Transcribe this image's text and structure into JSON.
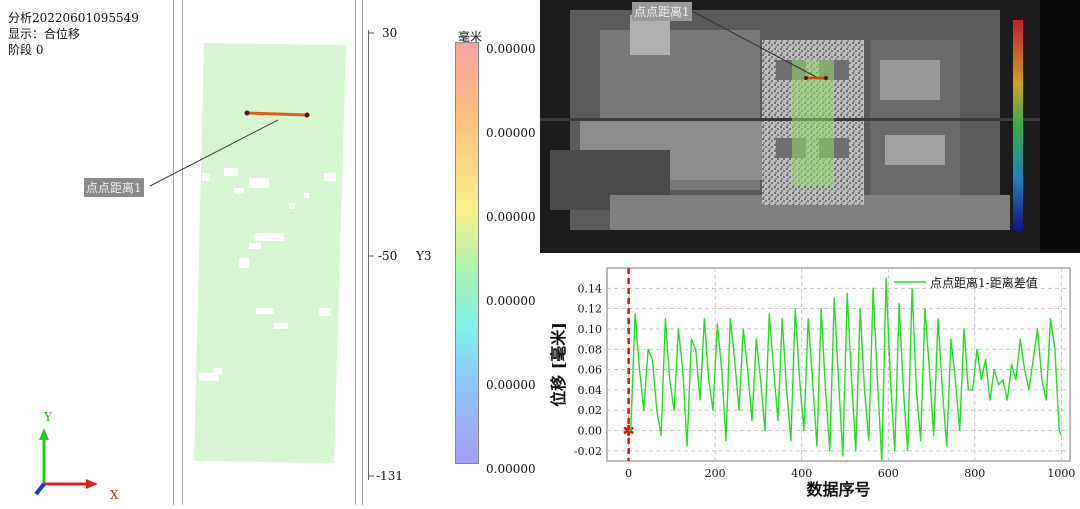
{
  "info": {
    "analysis": "分析20220601095549",
    "display": "显示：合位移",
    "stage": "阶段 0"
  },
  "left_view": {
    "measurement_label": "点点距离1",
    "y_ticks": [
      "30",
      "-50",
      "-131"
    ],
    "y_axis_name": "Y3",
    "axis_x": "X",
    "axis_y": "Y",
    "patch_color": "#d5f7cf"
  },
  "colorbar": {
    "unit": "毫米",
    "values": [
      "0.00000",
      "0.00000",
      "0.00000",
      "0.00000",
      "0.00000",
      "0.00000"
    ]
  },
  "camera_view": {
    "measurement_label": "点点距离1"
  },
  "chart_data": {
    "type": "line",
    "xlabel": "数据序号",
    "ylabel": "位移 [毫米]",
    "xlim": [
      -50,
      1020
    ],
    "ylim": [
      -0.03,
      0.16
    ],
    "x_ticks": [
      0,
      200,
      400,
      600,
      800,
      1000
    ],
    "y_ticks": [
      -0.02,
      0.0,
      0.02,
      0.04,
      0.06,
      0.08,
      0.1,
      0.12,
      0.14
    ],
    "y_tick_labels": [
      "-0.02",
      "0.00",
      "0.02",
      "0.04",
      "0.06",
      "0.08",
      "0.10",
      "0.12",
      "0.14"
    ],
    "x_tick_labels": [
      "0",
      "200",
      "400",
      "600",
      "800",
      "1000"
    ],
    "legend_position": "top-right",
    "marker_x": 0,
    "series": [
      {
        "name": "点点距离1-距离差值",
        "color": "#22dd22",
        "x": [
          0,
          5,
          15,
          25,
          35,
          45,
          55,
          65,
          75,
          85,
          95,
          105,
          115,
          125,
          135,
          145,
          155,
          165,
          175,
          185,
          195,
          205,
          215,
          225,
          235,
          245,
          255,
          265,
          275,
          285,
          295,
          305,
          315,
          325,
          335,
          345,
          355,
          365,
          375,
          385,
          395,
          405,
          415,
          425,
          435,
          445,
          455,
          465,
          475,
          485,
          495,
          505,
          515,
          525,
          535,
          545,
          555,
          565,
          575,
          585,
          595,
          605,
          615,
          625,
          635,
          645,
          655,
          665,
          675,
          685,
          695,
          705,
          715,
          725,
          735,
          745,
          755,
          765,
          775,
          785,
          795,
          805,
          815,
          825,
          835,
          845,
          855,
          865,
          875,
          885,
          895,
          905,
          915,
          925,
          935,
          945,
          955,
          965,
          975,
          985,
          995,
          1000
        ],
        "y": [
          0.0,
          0.0,
          0.115,
          0.06,
          0.02,
          0.08,
          0.07,
          0.02,
          -0.005,
          0.11,
          0.05,
          0.02,
          0.1,
          0.06,
          -0.015,
          0.09,
          0.08,
          0.03,
          0.11,
          0.05,
          0.02,
          0.105,
          0.06,
          -0.01,
          0.11,
          0.07,
          0.02,
          0.1,
          0.06,
          0.01,
          0.09,
          0.05,
          0.0,
          0.115,
          0.06,
          0.01,
          0.11,
          0.04,
          -0.01,
          0.12,
          0.05,
          0.0,
          0.11,
          0.05,
          -0.015,
          0.12,
          0.04,
          -0.02,
          0.13,
          0.05,
          -0.025,
          0.135,
          0.05,
          -0.02,
          0.12,
          0.04,
          -0.01,
          0.14,
          0.05,
          -0.03,
          0.15,
          0.05,
          -0.02,
          0.125,
          0.04,
          -0.02,
          0.14,
          0.04,
          -0.01,
          0.12,
          0.06,
          -0.005,
          0.11,
          0.04,
          -0.015,
          0.09,
          0.05,
          0.0,
          0.1,
          0.04,
          0.04,
          0.08,
          0.05,
          0.07,
          0.03,
          0.06,
          0.045,
          0.05,
          0.03,
          0.065,
          0.05,
          0.09,
          0.06,
          0.04,
          0.07,
          0.1,
          0.05,
          0.03,
          0.11,
          0.08,
          0.0,
          -0.005
        ]
      }
    ]
  }
}
